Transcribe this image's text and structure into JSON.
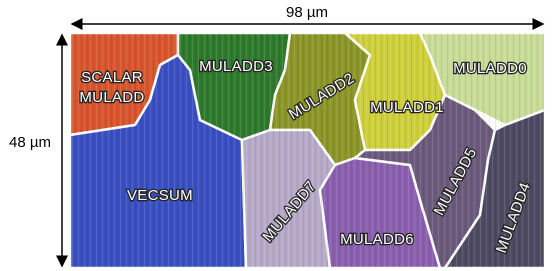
{
  "dimensions": {
    "width": "98 µm",
    "height": "48 µm"
  },
  "blocks": [
    {
      "lines": [
        "SCALAR",
        "MULADD"
      ]
    },
    {
      "lines": [
        "VECSUM"
      ]
    },
    {
      "lines": [
        "MULADD3"
      ]
    },
    {
      "lines": [
        "MULADD2"
      ]
    },
    {
      "lines": [
        "MULADD1"
      ]
    },
    {
      "lines": [
        "MULADD0"
      ]
    },
    {
      "lines": [
        "MULADD7"
      ]
    },
    {
      "lines": [
        "MULADD6"
      ]
    },
    {
      "lines": [
        "MULADD5"
      ]
    },
    {
      "lines": [
        "MULADD4"
      ]
    }
  ]
}
